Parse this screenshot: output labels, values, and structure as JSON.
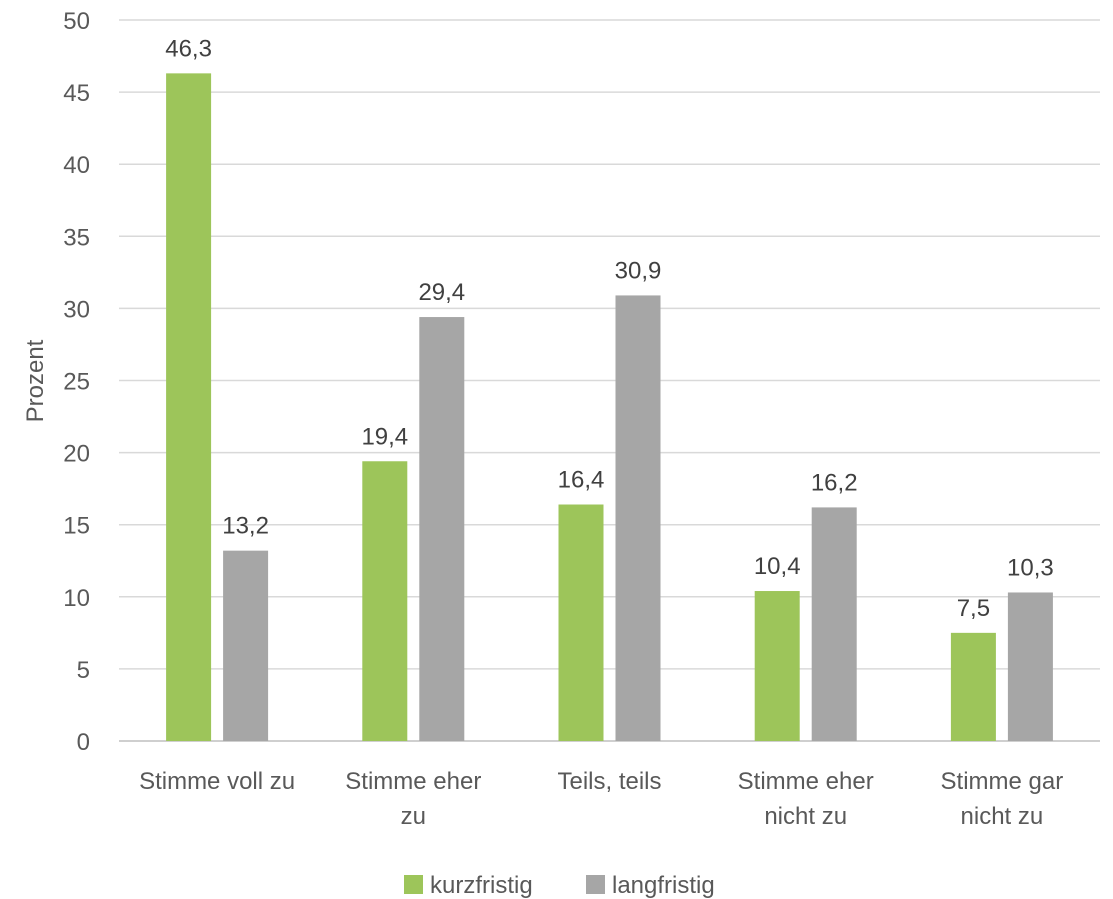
{
  "chart_data": {
    "type": "bar",
    "categories": [
      [
        "Stimme voll zu"
      ],
      [
        "Stimme eher",
        "zu"
      ],
      [
        "Teils, teils"
      ],
      [
        "Stimme eher",
        "nicht zu"
      ],
      [
        "Stimme gar",
        "nicht zu"
      ]
    ],
    "series": [
      {
        "name": "kurzfristig",
        "color": "#9DC55A",
        "values": [
          46.3,
          19.4,
          16.4,
          10.4,
          7.5
        ],
        "labels": [
          "46,3",
          "19,4",
          "16,4",
          "10,4",
          "7,5"
        ]
      },
      {
        "name": "langfristig",
        "color": "#A6A6A6",
        "values": [
          13.2,
          29.4,
          30.9,
          16.2,
          10.3
        ],
        "labels": [
          "13,2",
          "29,4",
          "30,9",
          "16,2",
          "10,3"
        ]
      }
    ],
    "ylabel": "Prozent",
    "ylim": [
      0,
      50
    ],
    "yticks": [
      0,
      5,
      10,
      15,
      20,
      25,
      30,
      35,
      40,
      45,
      50
    ],
    "grid": true,
    "legend": "bottom-center"
  }
}
